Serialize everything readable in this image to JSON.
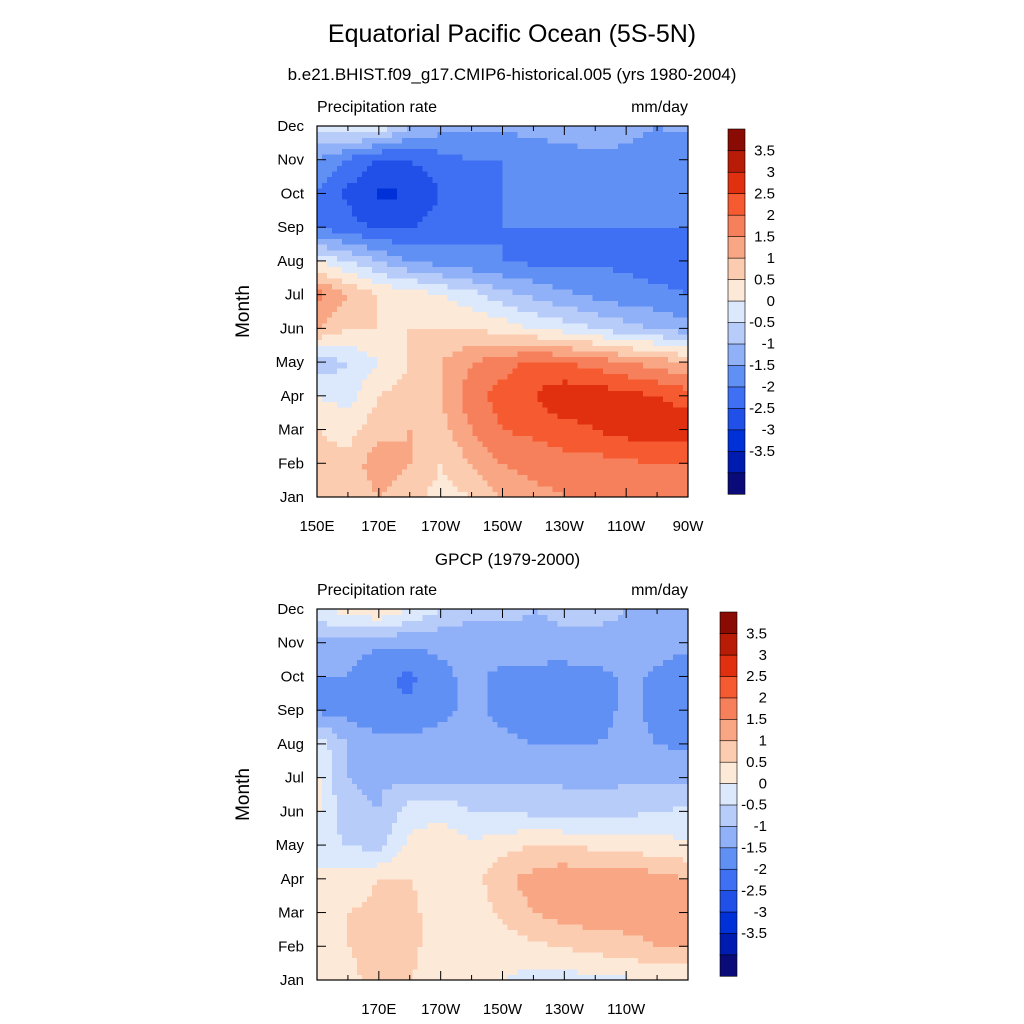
{
  "title": "Equatorial Pacific Ocean (5S-5N)",
  "subtitle": "b.e21.BHIST.f09_g17.CMIP6-historical.005 (yrs 1980-2004)",
  "colorbar": {
    "colors": [
      "#0a0a78",
      "#001cb0",
      "#0030d8",
      "#2050e8",
      "#3f70f4",
      "#6090f4",
      "#90b0f8",
      "#b8ccfa",
      "#dce8fc",
      "#fde9d8",
      "#fcccb0",
      "#f9a684",
      "#f7805c",
      "#f55a30",
      "#e03010",
      "#b81c06",
      "#8a0a04"
    ],
    "labels": [
      "-3.5",
      "-3",
      "-2.5",
      "-2",
      "-1.5",
      "-1",
      "-0.5",
      "0",
      "0.5",
      "1",
      "1.5",
      "2",
      "2.5",
      "3",
      "3.5"
    ],
    "levels": [
      -4,
      -3.5,
      -3,
      -2.5,
      -2,
      -1.5,
      -1,
      -0.5,
      0,
      0.5,
      1,
      1.5,
      2,
      2.5,
      3,
      3.5,
      4
    ]
  },
  "chart_data": [
    {
      "type": "heatmap",
      "title": "",
      "left_label": "Precipitation rate",
      "right_label": "mm/day",
      "ylabel": "Month",
      "xlabel": "",
      "x_ticks": [
        "150E",
        "170E",
        "170W",
        "150W",
        "130W",
        "110W",
        "90W"
      ],
      "x_values": [
        150,
        170,
        190,
        210,
        230,
        250,
        270
      ],
      "y_ticks": [
        "Jan",
        "Feb",
        "Mar",
        "Apr",
        "May",
        "Jun",
        "Jul",
        "Aug",
        "Sep",
        "Oct",
        "Nov",
        "Dec"
      ],
      "xlim": [
        150,
        270
      ],
      "ylim": [
        1,
        12
      ],
      "z_range": [
        -4,
        4
      ],
      "grid": {
        "lon": [
          150,
          160,
          170,
          180,
          190,
          200,
          210,
          220,
          230,
          240,
          250,
          260,
          270
        ],
        "months": [
          "Jan",
          "Feb",
          "Mar",
          "Apr",
          "May",
          "Jun",
          "Jul",
          "Aug",
          "Sep",
          "Oct",
          "Nov",
          "Dec"
        ],
        "z": [
          [
            1.5,
            1.0,
            1.5,
            1.2,
            0.8,
            1.0,
            1.5,
            1.8,
            2.0,
            2.0,
            2.0,
            2.2,
            2.3
          ],
          [
            1.2,
            1.2,
            1.8,
            1.5,
            1.0,
            1.5,
            2.0,
            2.2,
            2.3,
            2.3,
            2.4,
            2.5,
            2.5
          ],
          [
            1.0,
            0.8,
            1.3,
            1.5,
            1.3,
            2.0,
            2.5,
            2.6,
            2.8,
            3.0,
            3.2,
            3.3,
            3.3
          ],
          [
            0.5,
            0.3,
            1.0,
            1.2,
            1.5,
            2.3,
            2.7,
            3.0,
            3.4,
            3.3,
            3.2,
            3.0,
            2.8
          ],
          [
            -0.3,
            0.0,
            0.5,
            1.0,
            1.5,
            2.0,
            2.3,
            2.6,
            2.5,
            2.3,
            2.0,
            1.8,
            1.5
          ],
          [
            1.5,
            1.0,
            1.0,
            1.0,
            1.0,
            1.0,
            0.8,
            0.5,
            0.3,
            0.0,
            -0.3,
            -0.5,
            -0.8
          ],
          [
            2.2,
            1.5,
            1.0,
            0.8,
            0.5,
            0.2,
            -0.3,
            -0.6,
            -0.9,
            -1.1,
            -1.3,
            -1.4,
            -1.5
          ],
          [
            0.5,
            0.0,
            -0.5,
            -1.0,
            -1.2,
            -1.4,
            -1.5,
            -1.6,
            -1.6,
            -1.6,
            -1.6,
            -1.7,
            -1.7
          ],
          [
            -1.5,
            -1.8,
            -2.1,
            -2.0,
            -1.8,
            -1.6,
            -1.5,
            -1.5,
            -1.5,
            -1.5,
            -1.5,
            -1.5,
            -1.5
          ],
          [
            -1.6,
            -2.1,
            -2.6,
            -2.5,
            -2.0,
            -1.6,
            -1.5,
            -1.5,
            -1.5,
            -1.5,
            -1.5,
            -1.5,
            -1.5
          ],
          [
            -1.0,
            -1.6,
            -2.1,
            -2.0,
            -1.7,
            -1.5,
            -1.5,
            -1.4,
            -1.3,
            -1.2,
            -1.1,
            -1.2,
            -1.3
          ],
          [
            0.2,
            0.5,
            0.4,
            -0.5,
            -0.8,
            -0.9,
            -0.9,
            -0.8,
            -0.7,
            -0.6,
            -0.9,
            -1.0,
            -0.9
          ]
        ]
      }
    },
    {
      "type": "heatmap",
      "title": "GPCP (1979-2000)",
      "left_label": "Precipitation rate",
      "right_label": "mm/day",
      "ylabel": "Month",
      "xlabel": "",
      "x_ticks": [
        "170E",
        "170W",
        "150W",
        "130W",
        "110W"
      ],
      "x_values": [
        170,
        190,
        210,
        230,
        250
      ],
      "y_ticks": [
        "Jan",
        "Feb",
        "Mar",
        "Apr",
        "May",
        "Jun",
        "Jul",
        "Aug",
        "Sep",
        "Oct",
        "Nov",
        "Dec"
      ],
      "xlim": [
        150,
        270
      ],
      "ylim": [
        1,
        12
      ],
      "z_range": [
        -4,
        4
      ],
      "grid": {
        "lon": [
          150,
          160,
          170,
          180,
          190,
          200,
          210,
          220,
          230,
          240,
          250,
          260,
          270
        ],
        "months": [
          "Jan",
          "Feb",
          "Mar",
          "Apr",
          "May",
          "Jun",
          "Jul",
          "Aug",
          "Sep",
          "Oct",
          "Nov",
          "Dec"
        ],
        "z": [
          [
            0.6,
            0.8,
            1.3,
            1.0,
            0.8,
            0.5,
            0.5,
            0.3,
            0.3,
            0.3,
            0.4,
            0.6,
            0.6
          ],
          [
            0.8,
            1.0,
            1.2,
            1.1,
            0.8,
            0.6,
            0.7,
            0.9,
            1.0,
            1.2,
            1.3,
            1.5,
            1.5
          ],
          [
            1.0,
            1.0,
            1.1,
            1.1,
            0.8,
            0.6,
            1.1,
            1.5,
            1.7,
            1.8,
            1.8,
            1.8,
            1.6
          ],
          [
            0.7,
            0.8,
            1.0,
            1.0,
            0.8,
            0.8,
            1.4,
            1.7,
            1.9,
            1.7,
            1.9,
            1.7,
            1.5
          ],
          [
            0.2,
            0.0,
            -0.2,
            0.6,
            0.8,
            0.6,
            0.8,
            1.0,
            1.0,
            0.9,
            0.8,
            0.7,
            0.6
          ],
          [
            0.6,
            -0.4,
            -0.5,
            0.3,
            0.4,
            0.0,
            0.0,
            -0.1,
            -0.2,
            -0.2,
            -0.1,
            0.0,
            0.1
          ],
          [
            0.6,
            -0.5,
            -0.6,
            -0.6,
            -0.6,
            -0.6,
            -0.6,
            -0.6,
            -0.6,
            -0.7,
            -0.6,
            -0.6,
            -0.6
          ],
          [
            0.3,
            -0.5,
            -0.7,
            -0.8,
            -0.8,
            -0.9,
            -0.9,
            -1.0,
            -1.0,
            -1.0,
            -0.9,
            -1.0,
            -1.1
          ],
          [
            -1.1,
            -1.2,
            -1.5,
            -1.4,
            -1.1,
            -0.9,
            -1.1,
            -1.2,
            -1.3,
            -1.2,
            -0.9,
            -1.1,
            -1.2
          ],
          [
            -1.0,
            -1.0,
            -1.4,
            -1.6,
            -1.1,
            -0.9,
            -1.1,
            -1.2,
            -1.3,
            -1.2,
            -0.9,
            -1.1,
            -1.3
          ],
          [
            -0.6,
            -0.8,
            -0.9,
            -0.9,
            -0.9,
            -0.9,
            -0.8,
            -0.7,
            -0.6,
            -0.6,
            -0.6,
            -0.8,
            -0.9
          ],
          [
            0.3,
            0.8,
            1.0,
            0.5,
            0.0,
            -0.3,
            -0.3,
            -0.5,
            -0.4,
            -0.4,
            -0.5,
            -0.6,
            -0.6
          ]
        ]
      }
    }
  ]
}
